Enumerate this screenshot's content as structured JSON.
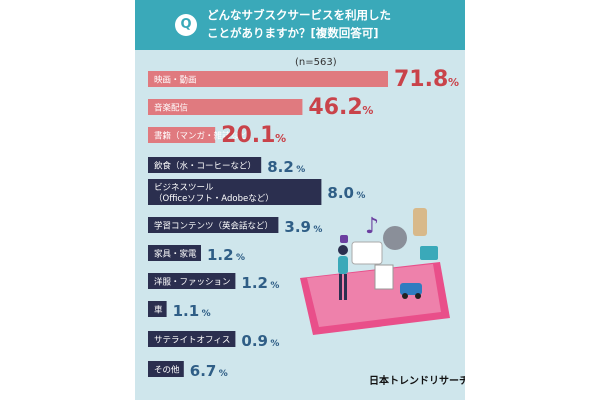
{
  "question": {
    "badge": "Q",
    "line1": "どんなサブスクサービスを利用した",
    "line2": "ことがありますか？[複数回答可]"
  },
  "sample_note": "(n=563)",
  "brand": "日本トレンドリサーチ",
  "colors": {
    "header": "#3aa9b9",
    "top3_bar": "#e07a7f",
    "top3_value": "#c9434a",
    "other_label_bg": "#2b2f4f",
    "other_value": "#2f5e86"
  },
  "chart_data": {
    "type": "bar",
    "orientation": "horizontal",
    "unit": "%",
    "xlim": [
      0,
      100
    ],
    "categories": [
      "映画・動画",
      "音楽配信",
      "書籍（マンガ・雑誌など）",
      "飲食（水・コーヒーなど）",
      [
        "ビジネスツール",
        "（Officeソフト・Adobeなど）"
      ],
      "学習コンテンツ（英会話など）",
      "家具・家電",
      "洋服・ファッション",
      "車",
      "サテライトオフィス",
      "その他"
    ],
    "values": [
      71.8,
      46.2,
      20.1,
      8.2,
      8.0,
      3.9,
      1.2,
      1.2,
      1.1,
      0.9,
      6.7
    ]
  }
}
